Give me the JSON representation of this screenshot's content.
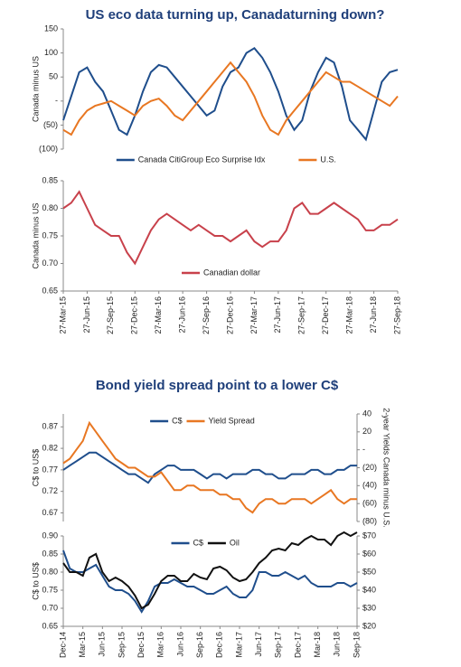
{
  "chart_data": [
    {
      "type": "line",
      "title": "US eco data turning up, Canadaturning down?",
      "ylabel": "Canada minus US",
      "ylim": [
        -100,
        150
      ],
      "yticks": [
        {
          "value": -100,
          "label": "(100)"
        },
        {
          "value": -50,
          "label": "(50)"
        },
        {
          "value": 0,
          "label": "-"
        },
        50,
        100,
        150
      ],
      "legend": "below",
      "series": [
        {
          "name": "Canada CitiGroup Eco Surprise Idx",
          "color": "#1f4e8c",
          "values": [
            -40,
            10,
            60,
            70,
            40,
            20,
            -20,
            -60,
            -70,
            -30,
            20,
            60,
            75,
            70,
            50,
            30,
            10,
            -10,
            -30,
            -20,
            30,
            60,
            70,
            100,
            110,
            90,
            60,
            20,
            -30,
            -60,
            -40,
            20,
            60,
            90,
            80,
            30,
            -40,
            -60,
            -80,
            -20,
            40,
            60,
            65
          ]
        },
        {
          "name": "U.S.",
          "color": "#e87722",
          "values": [
            -60,
            -70,
            -40,
            -20,
            -10,
            -5,
            0,
            -10,
            -20,
            -30,
            -10,
            0,
            5,
            -10,
            -30,
            -40,
            -20,
            0,
            20,
            40,
            60,
            80,
            60,
            40,
            10,
            -30,
            -60,
            -70,
            -40,
            -20,
            0,
            20,
            40,
            60,
            50,
            40,
            40,
            30,
            20,
            10,
            0,
            -10,
            10
          ]
        }
      ]
    },
    {
      "type": "line",
      "ylabel": "Canada minus US",
      "ylim": [
        0.65,
        0.85
      ],
      "yticks": [
        0.65,
        {
          "value": 0.7,
          "label": "0.70"
        },
        0.75,
        {
          "value": 0.8,
          "label": "0.80"
        },
        0.85
      ],
      "legend": "lower center",
      "categories": [
        "27-Mar-15",
        null,
        null,
        "27-Jun-15",
        null,
        null,
        "27-Sep-15",
        null,
        null,
        "27-Dec-15",
        null,
        null,
        "27-Mar-16",
        null,
        null,
        "27-Jun-16",
        null,
        null,
        "27-Sep-16",
        null,
        null,
        "27-Dec-16",
        null,
        null,
        "27-Mar-17",
        null,
        null,
        "27-Jun-17",
        null,
        null,
        "27-Sep-17",
        null,
        null,
        "27-Dec-17",
        null,
        null,
        "27-Mar-18",
        null,
        null,
        "27-Jun-18",
        null,
        null,
        "27-Sep-18"
      ],
      "series": [
        {
          "name": "Canadian dollar",
          "color": "#c8414b",
          "values": [
            0.8,
            0.81,
            0.83,
            0.8,
            0.77,
            0.76,
            0.75,
            0.75,
            0.72,
            0.7,
            0.73,
            0.76,
            0.78,
            0.79,
            0.78,
            0.77,
            0.76,
            0.77,
            0.76,
            0.75,
            0.75,
            0.74,
            0.75,
            0.76,
            0.74,
            0.73,
            0.74,
            0.74,
            0.76,
            0.8,
            0.81,
            0.79,
            0.79,
            0.8,
            0.81,
            0.8,
            0.79,
            0.78,
            0.76,
            0.76,
            0.77,
            0.77,
            0.78
          ]
        }
      ]
    },
    {
      "type": "line",
      "title": "Bond yield  spread point to a lower C$",
      "ylabel": "C$ to US$",
      "y2label": "2-year Yields Canada minus U.S.",
      "ylim": [
        0.65,
        0.9
      ],
      "yticks": [
        0.67,
        0.72,
        0.77,
        0.82,
        0.87
      ],
      "y2lim": [
        -80,
        40
      ],
      "y2ticks": [
        {
          "value": -80,
          "label": "(80)"
        },
        {
          "value": -60,
          "label": "(60)"
        },
        {
          "value": -40,
          "label": "(40)"
        },
        {
          "value": -20,
          "label": "(20)"
        },
        {
          "value": 0,
          "label": "-"
        },
        20,
        40
      ],
      "legend": "upper center",
      "series": [
        {
          "name": "C$",
          "color": "#1f4e8c",
          "values": [
            0.77,
            0.78,
            0.79,
            0.8,
            0.81,
            0.81,
            0.8,
            0.79,
            0.78,
            0.77,
            0.76,
            0.76,
            0.75,
            0.74,
            0.76,
            0.77,
            0.78,
            0.78,
            0.77,
            0.77,
            0.77,
            0.76,
            0.75,
            0.76,
            0.76,
            0.75,
            0.76,
            0.76,
            0.76,
            0.77,
            0.77,
            0.76,
            0.76,
            0.75,
            0.75,
            0.76,
            0.76,
            0.76,
            0.77,
            0.77,
            0.76,
            0.76,
            0.77,
            0.77,
            0.78,
            0.78
          ]
        },
        {
          "name": "Yield Spread",
          "color": "#e87722",
          "axis": "y2",
          "values": [
            -15,
            -10,
            0,
            10,
            30,
            20,
            10,
            0,
            -10,
            -15,
            -20,
            -20,
            -25,
            -30,
            -30,
            -25,
            -35,
            -45,
            -45,
            -40,
            -40,
            -45,
            -45,
            -45,
            -50,
            -50,
            -55,
            -55,
            -65,
            -70,
            -60,
            -55,
            -55,
            -60,
            -60,
            -55,
            -55,
            -55,
            -60,
            -55,
            -50,
            -45,
            -55,
            -60,
            -55,
            -55
          ]
        }
      ]
    },
    {
      "type": "line",
      "ylabel": "C$ to US$",
      "ylim": [
        0.65,
        0.9
      ],
      "yticks": [
        0.65,
        {
          "value": 0.7,
          "label": "0.70"
        },
        0.75,
        {
          "value": 0.8,
          "label": "0.80"
        },
        0.85,
        {
          "value": 0.9,
          "label": "0.90"
        }
      ],
      "y2lim": [
        20,
        70
      ],
      "y2ticks": [
        {
          "value": 20,
          "label": "$20"
        },
        {
          "value": 30,
          "label": "$30"
        },
        {
          "value": 40,
          "label": "$40"
        },
        {
          "value": 50,
          "label": "$50"
        },
        {
          "value": 60,
          "label": "$60"
        },
        {
          "value": 70,
          "label": "$70"
        }
      ],
      "legend": "upper center",
      "categories": [
        "Dec-14",
        null,
        null,
        "Mar-15",
        null,
        null,
        "Jun-15",
        null,
        null,
        "Sep-15",
        null,
        null,
        "Dec-15",
        null,
        null,
        "Mar-16",
        null,
        null,
        "Jun-16",
        null,
        null,
        "Sep-16",
        null,
        null,
        "Dec-16",
        null,
        null,
        "Mar-17",
        null,
        null,
        "Jun-17",
        null,
        null,
        "Sep-17",
        null,
        null,
        "Dec-17",
        null,
        null,
        "Mar-18",
        null,
        null,
        "Jun-18",
        null,
        null,
        "Sep-18"
      ],
      "series": [
        {
          "name": "C$",
          "color": "#1f4e8c",
          "values": [
            0.86,
            0.81,
            0.8,
            0.8,
            0.81,
            0.82,
            0.79,
            0.76,
            0.75,
            0.75,
            0.74,
            0.72,
            0.69,
            0.72,
            0.76,
            0.77,
            0.77,
            0.78,
            0.77,
            0.76,
            0.76,
            0.75,
            0.74,
            0.74,
            0.75,
            0.76,
            0.74,
            0.73,
            0.73,
            0.75,
            0.8,
            0.8,
            0.79,
            0.79,
            0.8,
            0.79,
            0.78,
            0.79,
            0.77,
            0.76,
            0.76,
            0.76,
            0.77,
            0.77,
            0.76,
            0.77
          ]
        },
        {
          "name": "Oil",
          "color": "#111111",
          "axis": "y2",
          "values": [
            55,
            50,
            50,
            48,
            58,
            60,
            50,
            45,
            47,
            45,
            42,
            37,
            30,
            32,
            38,
            45,
            48,
            48,
            45,
            45,
            49,
            47,
            46,
            52,
            53,
            51,
            47,
            45,
            46,
            50,
            55,
            58,
            62,
            63,
            62,
            66,
            65,
            68,
            70,
            68,
            68,
            65,
            70,
            72,
            70,
            72
          ]
        }
      ]
    }
  ]
}
